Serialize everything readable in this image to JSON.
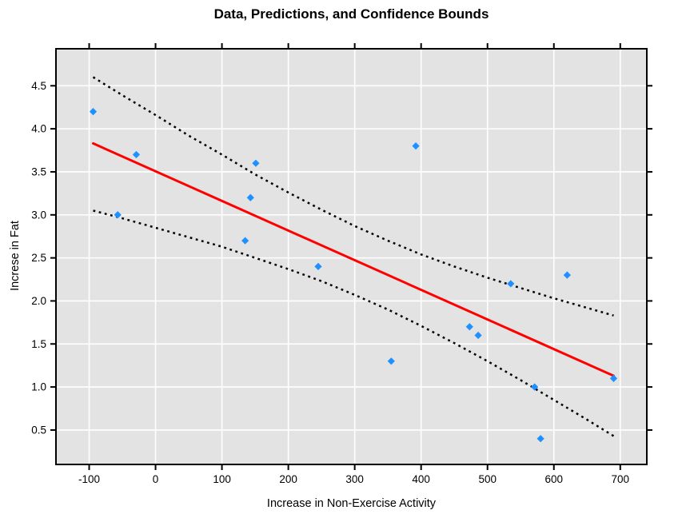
{
  "title": "Data, Predictions, and Confidence Bounds",
  "chart_data": {
    "type": "scatter",
    "title": "Data, Predictions, and Confidence Bounds",
    "xlabel": "Increase in Non-Exercise Activity",
    "ylabel": "Increse in Fat",
    "xlim": [
      -150,
      740
    ],
    "ylim": [
      0.1,
      4.93
    ],
    "x_ticks": [
      -100,
      0,
      100,
      200,
      300,
      400,
      500,
      600,
      700
    ],
    "y_ticks": [
      0.5,
      1.0,
      1.5,
      2.0,
      2.5,
      3.0,
      3.5,
      4.0,
      4.5
    ],
    "grid": true,
    "legend_position": "none",
    "points": [
      [
        -94,
        4.2
      ],
      [
        -57,
        3.0
      ],
      [
        -29,
        3.7
      ],
      [
        135,
        2.7
      ],
      [
        143,
        3.2
      ],
      [
        151,
        3.6
      ],
      [
        245,
        2.4
      ],
      [
        355,
        1.3
      ],
      [
        392,
        3.8
      ],
      [
        473,
        1.7
      ],
      [
        486,
        1.6
      ],
      [
        535,
        2.2
      ],
      [
        571,
        1.0
      ],
      [
        580,
        0.4
      ],
      [
        620,
        2.3
      ],
      [
        690,
        1.1
      ]
    ],
    "regression_line": [
      [
        -94,
        3.83
      ],
      [
        690,
        1.13
      ]
    ],
    "upper_bound": [
      [
        -94,
        4.6
      ],
      [
        -50,
        4.39
      ],
      [
        0,
        4.16
      ],
      [
        50,
        3.92
      ],
      [
        100,
        3.7
      ],
      [
        150,
        3.47
      ],
      [
        200,
        3.26
      ],
      [
        250,
        3.06
      ],
      [
        300,
        2.87
      ],
      [
        350,
        2.7
      ],
      [
        400,
        2.54
      ],
      [
        450,
        2.4
      ],
      [
        500,
        2.27
      ],
      [
        550,
        2.15
      ],
      [
        600,
        2.03
      ],
      [
        650,
        1.92
      ],
      [
        690,
        1.83
      ]
    ],
    "lower_bound": [
      [
        -94,
        3.05
      ],
      [
        -50,
        2.96
      ],
      [
        0,
        2.85
      ],
      [
        50,
        2.74
      ],
      [
        100,
        2.63
      ],
      [
        150,
        2.5
      ],
      [
        200,
        2.37
      ],
      [
        250,
        2.23
      ],
      [
        300,
        2.07
      ],
      [
        350,
        1.9
      ],
      [
        400,
        1.71
      ],
      [
        450,
        1.51
      ],
      [
        500,
        1.3
      ],
      [
        550,
        1.08
      ],
      [
        600,
        0.85
      ],
      [
        650,
        0.62
      ],
      [
        690,
        0.43
      ]
    ],
    "colors": {
      "point": "#1E90FF",
      "regression": "#FF0000",
      "bound": "#000000",
      "plot_bg": "#E3E3E3",
      "grid": "#FFFFFF",
      "border": "#000000",
      "text": "#000000"
    }
  }
}
